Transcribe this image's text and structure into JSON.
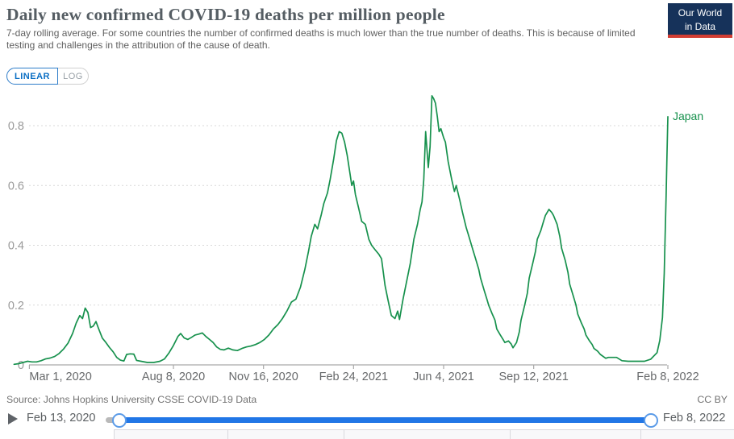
{
  "header": {
    "title": "Daily new confirmed COVID-19 deaths per million people",
    "subtitle": "7-day rolling average. For some countries the number of confirmed deaths is much lower than the true number of deaths. This is because of limited testing and challenges in the attribution of the cause of death.",
    "logo_line1": "Our World",
    "logo_line2": "in Data",
    "logo_bg_color": "#16325a",
    "logo_stripe_color": "#d23d33"
  },
  "controls": {
    "linear_label": "LINEAR",
    "log_label": "LOG",
    "active_color": "#0b6fc4"
  },
  "chart_data": {
    "type": "line",
    "title": "Daily new confirmed COVID-19 deaths per million people",
    "xlabel": "",
    "ylabel": "",
    "x_range": [
      "2020-02-13",
      "2022-02-08"
    ],
    "ylim": [
      0,
      0.9
    ],
    "grid": "dashed-horizontal",
    "line_color": "#17914d",
    "axis_color": "#a9a9a9",
    "grid_color": "#d8d8d8",
    "y_ticks": [
      {
        "value": 0,
        "label": "0"
      },
      {
        "value": 0.2,
        "label": "0.2"
      },
      {
        "value": 0.4,
        "label": "0.4"
      },
      {
        "value": 0.6,
        "label": "0.6"
      },
      {
        "value": 0.8,
        "label": "0.8"
      }
    ],
    "x_ticks": [
      {
        "date": "2020-03-01",
        "label": "Mar 1, 2020",
        "align": "start"
      },
      {
        "date": "2020-08-08",
        "label": "Aug 8, 2020",
        "align": "middle"
      },
      {
        "date": "2020-11-16",
        "label": "Nov 16, 2020",
        "align": "middle"
      },
      {
        "date": "2021-02-24",
        "label": "Feb 24, 2021",
        "align": "middle"
      },
      {
        "date": "2021-06-04",
        "label": "Jun 4, 2021",
        "align": "middle"
      },
      {
        "date": "2021-09-12",
        "label": "Sep 12, 2021",
        "align": "middle"
      },
      {
        "date": "2022-02-08",
        "label": "Feb 8, 2022",
        "align": "middle"
      }
    ],
    "series": [
      {
        "name": "Japan",
        "color": "#17914d",
        "points": [
          [
            "2020-02-13",
            0.002
          ],
          [
            "2020-02-18",
            0.004
          ],
          [
            "2020-02-23",
            0.008
          ],
          [
            "2020-02-28",
            0.012
          ],
          [
            "2020-03-04",
            0.01
          ],
          [
            "2020-03-09",
            0.01
          ],
          [
            "2020-03-14",
            0.014
          ],
          [
            "2020-03-19",
            0.02
          ],
          [
            "2020-03-24",
            0.023
          ],
          [
            "2020-03-29",
            0.028
          ],
          [
            "2020-04-03",
            0.038
          ],
          [
            "2020-04-08",
            0.053
          ],
          [
            "2020-04-13",
            0.073
          ],
          [
            "2020-04-18",
            0.105
          ],
          [
            "2020-04-22",
            0.14
          ],
          [
            "2020-04-26",
            0.165
          ],
          [
            "2020-04-29",
            0.155
          ],
          [
            "2020-05-02",
            0.19
          ],
          [
            "2020-05-05",
            0.175
          ],
          [
            "2020-05-08",
            0.125
          ],
          [
            "2020-05-11",
            0.13
          ],
          [
            "2020-05-14",
            0.145
          ],
          [
            "2020-05-17",
            0.12
          ],
          [
            "2020-05-21",
            0.09
          ],
          [
            "2020-05-25",
            0.075
          ],
          [
            "2020-05-29",
            0.058
          ],
          [
            "2020-06-02",
            0.044
          ],
          [
            "2020-06-06",
            0.025
          ],
          [
            "2020-06-10",
            0.016
          ],
          [
            "2020-06-14",
            0.013
          ],
          [
            "2020-06-17",
            0.035
          ],
          [
            "2020-06-21",
            0.037
          ],
          [
            "2020-06-25",
            0.036
          ],
          [
            "2020-06-28",
            0.015
          ],
          [
            "2020-07-03",
            0.012
          ],
          [
            "2020-07-10",
            0.008
          ],
          [
            "2020-07-17",
            0.008
          ],
          [
            "2020-07-24",
            0.012
          ],
          [
            "2020-07-29",
            0.02
          ],
          [
            "2020-08-03",
            0.04
          ],
          [
            "2020-08-08",
            0.065
          ],
          [
            "2020-08-13",
            0.095
          ],
          [
            "2020-08-16",
            0.105
          ],
          [
            "2020-08-20",
            0.09
          ],
          [
            "2020-08-24",
            0.085
          ],
          [
            "2020-08-28",
            0.092
          ],
          [
            "2020-09-01",
            0.1
          ],
          [
            "2020-09-05",
            0.103
          ],
          [
            "2020-09-09",
            0.107
          ],
          [
            "2020-09-13",
            0.095
          ],
          [
            "2020-09-17",
            0.085
          ],
          [
            "2020-09-21",
            0.075
          ],
          [
            "2020-09-25",
            0.06
          ],
          [
            "2020-09-29",
            0.052
          ],
          [
            "2020-10-03",
            0.05
          ],
          [
            "2020-10-08",
            0.056
          ],
          [
            "2020-10-13",
            0.05
          ],
          [
            "2020-10-18",
            0.048
          ],
          [
            "2020-10-23",
            0.055
          ],
          [
            "2020-10-28",
            0.06
          ],
          [
            "2020-11-02",
            0.063
          ],
          [
            "2020-11-07",
            0.068
          ],
          [
            "2020-11-12",
            0.075
          ],
          [
            "2020-11-17",
            0.085
          ],
          [
            "2020-11-22",
            0.1
          ],
          [
            "2020-11-27",
            0.12
          ],
          [
            "2020-12-02",
            0.135
          ],
          [
            "2020-12-07",
            0.155
          ],
          [
            "2020-12-12",
            0.18
          ],
          [
            "2020-12-17",
            0.21
          ],
          [
            "2020-12-22",
            0.22
          ],
          [
            "2020-12-27",
            0.26
          ],
          [
            "2021-01-01",
            0.32
          ],
          [
            "2021-01-05",
            0.38
          ],
          [
            "2021-01-08",
            0.43
          ],
          [
            "2021-01-12",
            0.47
          ],
          [
            "2021-01-15",
            0.455
          ],
          [
            "2021-01-19",
            0.5
          ],
          [
            "2021-01-22",
            0.54
          ],
          [
            "2021-01-26",
            0.575
          ],
          [
            "2021-01-29",
            0.62
          ],
          [
            "2021-02-02",
            0.69
          ],
          [
            "2021-02-05",
            0.75
          ],
          [
            "2021-02-08",
            0.78
          ],
          [
            "2021-02-11",
            0.775
          ],
          [
            "2021-02-14",
            0.745
          ],
          [
            "2021-02-17",
            0.7
          ],
          [
            "2021-02-20",
            0.64
          ],
          [
            "2021-02-22",
            0.6
          ],
          [
            "2021-02-24",
            0.615
          ],
          [
            "2021-02-26",
            0.57
          ],
          [
            "2021-03-02",
            0.52
          ],
          [
            "2021-03-05",
            0.48
          ],
          [
            "2021-03-09",
            0.47
          ],
          [
            "2021-03-13",
            0.42
          ],
          [
            "2021-03-16",
            0.4
          ],
          [
            "2021-03-20",
            0.385
          ],
          [
            "2021-03-24",
            0.37
          ],
          [
            "2021-03-27",
            0.355
          ],
          [
            "2021-03-29",
            0.31
          ],
          [
            "2021-03-31",
            0.265
          ],
          [
            "2021-04-03",
            0.22
          ],
          [
            "2021-04-07",
            0.165
          ],
          [
            "2021-04-11",
            0.155
          ],
          [
            "2021-04-14",
            0.18
          ],
          [
            "2021-04-16",
            0.152
          ],
          [
            "2021-04-20",
            0.22
          ],
          [
            "2021-04-24",
            0.28
          ],
          [
            "2021-04-28",
            0.34
          ],
          [
            "2021-05-02",
            0.42
          ],
          [
            "2021-05-06",
            0.47
          ],
          [
            "2021-05-09",
            0.52
          ],
          [
            "2021-05-11",
            0.545
          ],
          [
            "2021-05-13",
            0.62
          ],
          [
            "2021-05-15",
            0.78
          ],
          [
            "2021-05-17",
            0.7
          ],
          [
            "2021-05-18",
            0.66
          ],
          [
            "2021-05-20",
            0.73
          ],
          [
            "2021-05-22",
            0.9
          ],
          [
            "2021-05-24",
            0.89
          ],
          [
            "2021-05-26",
            0.875
          ],
          [
            "2021-05-28",
            0.83
          ],
          [
            "2021-05-30",
            0.78
          ],
          [
            "2021-06-01",
            0.79
          ],
          [
            "2021-06-04",
            0.76
          ],
          [
            "2021-06-06",
            0.745
          ],
          [
            "2021-06-09",
            0.68
          ],
          [
            "2021-06-13",
            0.62
          ],
          [
            "2021-06-16",
            0.58
          ],
          [
            "2021-06-18",
            0.6
          ],
          [
            "2021-06-22",
            0.55
          ],
          [
            "2021-06-25",
            0.51
          ],
          [
            "2021-06-29",
            0.46
          ],
          [
            "2021-07-02",
            0.43
          ],
          [
            "2021-07-06",
            0.39
          ],
          [
            "2021-07-10",
            0.35
          ],
          [
            "2021-07-13",
            0.32
          ],
          [
            "2021-07-15",
            0.29
          ],
          [
            "2021-07-19",
            0.25
          ],
          [
            "2021-07-22",
            0.22
          ],
          [
            "2021-07-24",
            0.2
          ],
          [
            "2021-07-28",
            0.17
          ],
          [
            "2021-07-31",
            0.15
          ],
          [
            "2021-08-02",
            0.12
          ],
          [
            "2021-08-06",
            0.1
          ],
          [
            "2021-08-09",
            0.085
          ],
          [
            "2021-08-11",
            0.075
          ],
          [
            "2021-08-15",
            0.08
          ],
          [
            "2021-08-18",
            0.07
          ],
          [
            "2021-08-20",
            0.057
          ],
          [
            "2021-08-24",
            0.075
          ],
          [
            "2021-08-27",
            0.11
          ],
          [
            "2021-08-29",
            0.15
          ],
          [
            "2021-09-02",
            0.2
          ],
          [
            "2021-09-05",
            0.24
          ],
          [
            "2021-09-07",
            0.29
          ],
          [
            "2021-09-11",
            0.34
          ],
          [
            "2021-09-14",
            0.38
          ],
          [
            "2021-09-16",
            0.42
          ],
          [
            "2021-09-20",
            0.45
          ],
          [
            "2021-09-23",
            0.48
          ],
          [
            "2021-09-25",
            0.5
          ],
          [
            "2021-09-29",
            0.52
          ],
          [
            "2021-10-02",
            0.51
          ],
          [
            "2021-10-04",
            0.5
          ],
          [
            "2021-10-08",
            0.47
          ],
          [
            "2021-10-11",
            0.43
          ],
          [
            "2021-10-13",
            0.39
          ],
          [
            "2021-10-17",
            0.35
          ],
          [
            "2021-10-20",
            0.31
          ],
          [
            "2021-10-22",
            0.27
          ],
          [
            "2021-10-26",
            0.23
          ],
          [
            "2021-10-29",
            0.2
          ],
          [
            "2021-10-31",
            0.17
          ],
          [
            "2021-11-04",
            0.14
          ],
          [
            "2021-11-07",
            0.12
          ],
          [
            "2021-11-09",
            0.1
          ],
          [
            "2021-11-13",
            0.08
          ],
          [
            "2021-11-16",
            0.068
          ],
          [
            "2021-11-18",
            0.055
          ],
          [
            "2021-11-22",
            0.046
          ],
          [
            "2021-11-25",
            0.035
          ],
          [
            "2021-12-01",
            0.022
          ],
          [
            "2021-12-04",
            0.025
          ],
          [
            "2021-12-13",
            0.025
          ],
          [
            "2021-12-19",
            0.014
          ],
          [
            "2021-12-26",
            0.012
          ],
          [
            "2022-01-04",
            0.012
          ],
          [
            "2022-01-13",
            0.012
          ],
          [
            "2022-01-20",
            0.019
          ],
          [
            "2022-01-27",
            0.041
          ],
          [
            "2022-01-30",
            0.082
          ],
          [
            "2022-02-02",
            0.158
          ],
          [
            "2022-02-04",
            0.306
          ],
          [
            "2022-02-05",
            0.43
          ],
          [
            "2022-02-06",
            0.56
          ],
          [
            "2022-02-07",
            0.7
          ],
          [
            "2022-02-08",
            0.83
          ]
        ],
        "end_label": "Japan"
      }
    ],
    "legend_position": "end-of-line"
  },
  "footer": {
    "source": "Source: Johns Hopkins University CSSE COVID-19 Data",
    "license": "CC BY"
  },
  "timeline": {
    "start_label": "Feb 13, 2020",
    "end_label": "Feb 8, 2022",
    "track_color": "#2176e6",
    "play_icon_color": "#5f6368"
  }
}
